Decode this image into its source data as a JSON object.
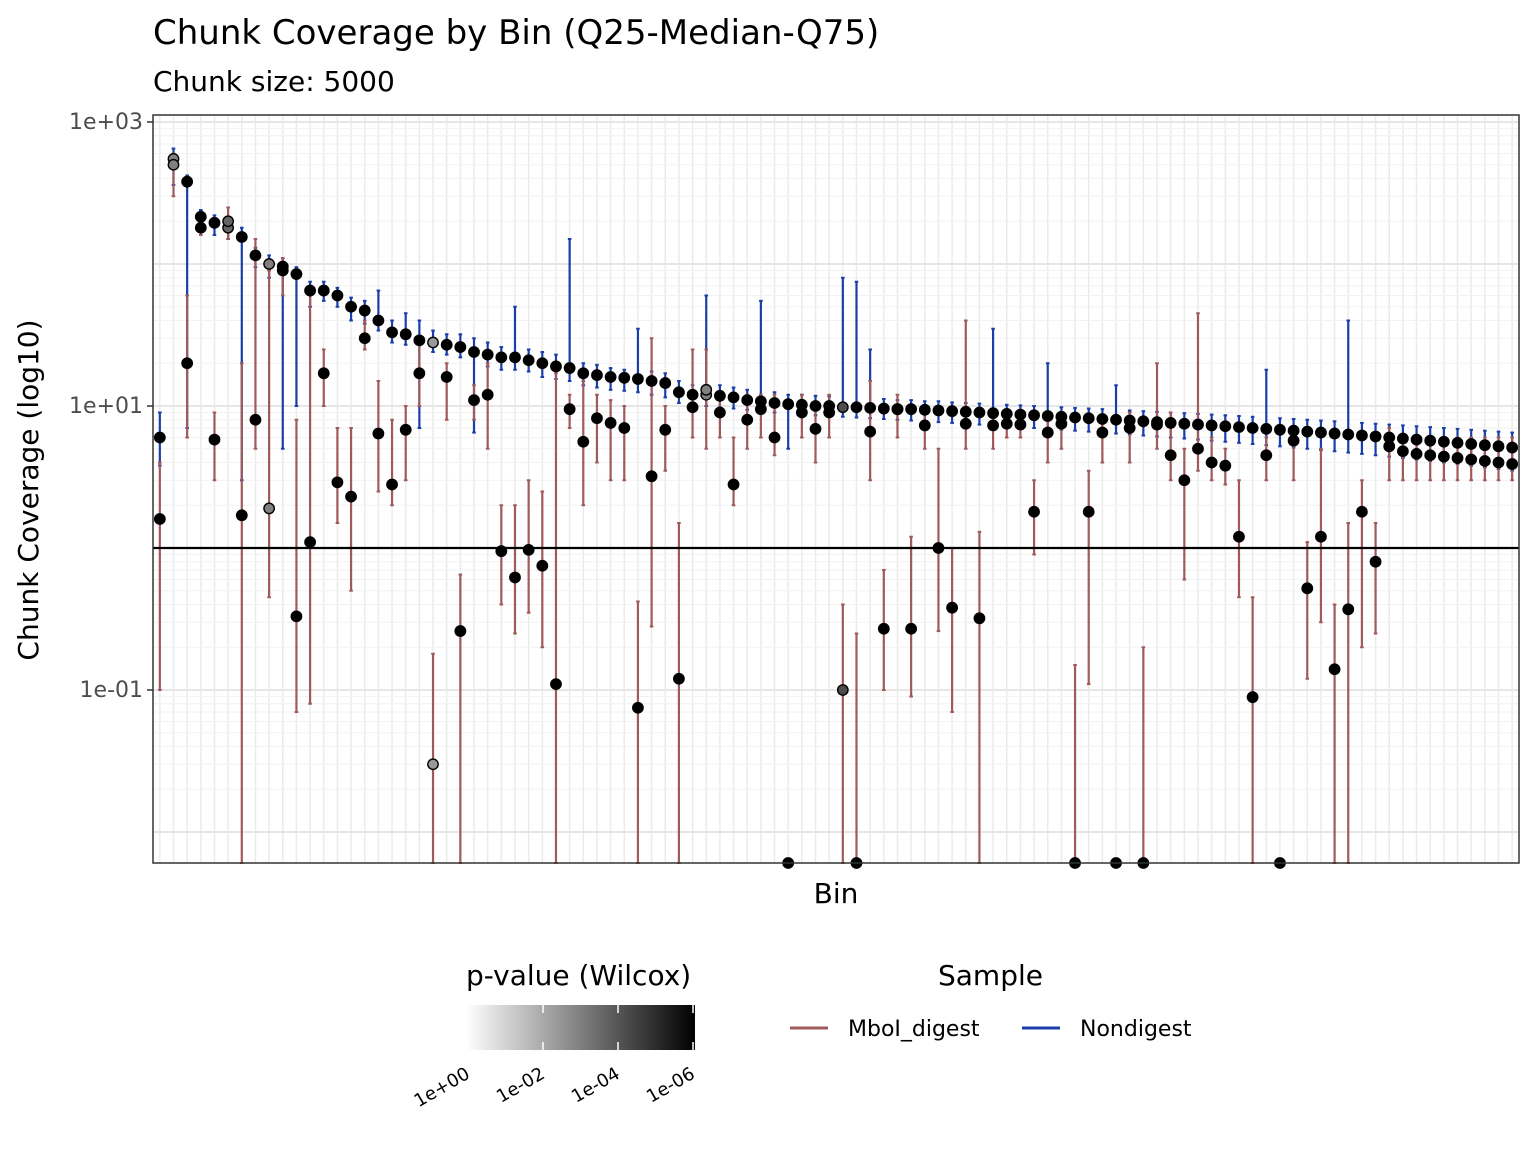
{
  "chart_data": {
    "type": "scatter",
    "title": "Chunk Coverage by Bin (Q25-Median-Q75)",
    "subtitle": "Chunk size: 5000",
    "xlabel": "Bin",
    "ylabel": "Chunk Coverage (log10)",
    "y_scale": "log10",
    "ylim": [
      0.003,
      1000
    ],
    "y_ticks": [
      "1e-01",
      "1e+01",
      "1e+03"
    ],
    "y_tick_values": [
      0.1,
      10,
      1000
    ],
    "x_tick_labels_shown": false,
    "grid": true,
    "legend_position": "bottom",
    "reference_line_y": 1,
    "colors": {
      "MboI_digest": "#a05a5a",
      "Nondigest": "#1a3ea8"
    },
    "legend": {
      "pvalue_title": "p-value (Wilcox)",
      "pvalue_ticks": [
        "1e+00",
        "1e-02",
        "1e-04",
        "1e-06"
      ],
      "sample_title": "Sample",
      "sample_entries": [
        "MboI_digest",
        "Nondigest"
      ]
    },
    "series": [
      {
        "name": "Nondigest",
        "median": [
          6.0,
          550.0,
          380.0,
          215.0,
          195.0,
          180.0,
          155.0,
          115.0,
          100.0,
          96.0,
          85.0,
          65.0,
          65.0,
          60.0,
          50.0,
          47.0,
          40.0,
          33.0,
          32.0,
          29.0,
          28.0,
          27.0,
          26.0,
          24.0,
          23.0,
          22.0,
          22.0,
          21.0,
          20.0,
          19.0,
          18.5,
          17.0,
          16.5,
          16.0,
          15.8,
          15.5,
          15.0,
          14.5,
          12.5,
          12.0,
          12.0,
          11.8,
          11.5,
          11.0,
          10.8,
          10.5,
          10.3,
          10.2,
          10.0,
          10.0,
          9.8,
          9.8,
          9.7,
          9.6,
          9.5,
          9.5,
          9.4,
          9.3,
          9.2,
          9.1,
          9.0,
          8.9,
          8.8,
          8.7,
          8.6,
          8.5,
          8.4,
          8.3,
          8.2,
          8.1,
          8.0,
          7.9,
          7.8,
          7.7,
          7.6,
          7.5,
          7.4,
          7.3,
          7.2,
          7.1,
          7.0,
          6.9,
          6.8,
          6.7,
          6.6,
          6.5,
          6.4,
          6.3,
          6.2,
          6.1,
          6.0,
          5.9,
          5.8,
          5.7,
          5.6,
          5.5,
          5.4,
          5.3,
          5.2,
          5.1
        ],
        "q25": [
          3.8,
          360.0,
          7.0,
          170.0,
          160.0,
          150.0,
          3.0,
          95.0,
          80.0,
          5.0,
          10.0,
          50.0,
          55.0,
          50.0,
          40.0,
          38.0,
          34.0,
          28.0,
          27.0,
          7.0,
          24.0,
          23.0,
          22.0,
          6.5,
          19.0,
          18.0,
          18.0,
          17.5,
          16.0,
          15.5,
          15.0,
          14.0,
          13.5,
          13.0,
          12.8,
          12.5,
          12.0,
          11.5,
          10.5,
          10.0,
          10.0,
          9.8,
          9.6,
          9.4,
          9.2,
          9.0,
          5.0,
          8.8,
          8.6,
          8.5,
          8.4,
          8.3,
          8.2,
          8.1,
          8.0,
          7.9,
          7.8,
          7.7,
          7.6,
          7.5,
          7.4,
          7.3,
          7.2,
          7.1,
          7.0,
          6.9,
          6.8,
          6.7,
          6.6,
          6.5,
          6.4,
          6.3,
          6.2,
          6.1,
          6.0,
          5.9,
          5.8,
          5.7,
          5.6,
          5.5,
          5.4,
          5.3,
          5.2,
          5.1,
          5.0,
          4.9,
          4.8,
          4.7,
          4.6,
          4.5,
          4.4,
          4.3,
          4.2,
          4.1,
          4.0,
          3.9,
          3.8,
          3.7,
          3.6,
          3.5
        ],
        "q75": [
          9.0,
          650.0,
          420.0,
          240.0,
          220.0,
          200.0,
          180.0,
          130.0,
          115.0,
          110.0,
          95.0,
          75.0,
          75.0,
          68.0,
          58.0,
          55.0,
          65.0,
          40.0,
          45.0,
          40.0,
          34.0,
          32.0,
          32.0,
          30.0,
          28.0,
          26.0,
          50.0,
          25.0,
          24.0,
          23.0,
          150.0,
          20.0,
          19.5,
          18.5,
          18.0,
          35.0,
          17.5,
          17.0,
          15.0,
          14.0,
          60.0,
          14.0,
          13.5,
          13.0,
          55.0,
          12.5,
          12.0,
          12.0,
          11.8,
          11.7,
          80.0,
          75.0,
          25.0,
          11.2,
          11.0,
          11.0,
          10.8,
          10.8,
          10.6,
          10.5,
          10.4,
          35.0,
          10.2,
          10.1,
          10.0,
          20.0,
          9.8,
          9.7,
          9.6,
          9.5,
          14.0,
          9.3,
          9.2,
          9.1,
          9.0,
          8.9,
          8.8,
          8.7,
          8.6,
          8.5,
          8.4,
          18.0,
          8.2,
          8.1,
          8.0,
          7.9,
          7.8,
          40.0,
          7.6,
          7.5,
          7.4,
          7.3,
          7.2,
          7.1,
          7.0,
          6.9,
          6.8,
          6.7,
          6.6,
          6.5
        ]
      },
      {
        "name": "MboI_digest",
        "median": [
          1.6,
          500.0,
          20.0,
          180.0,
          5.8,
          200.0,
          1.7,
          8.0,
          1.9,
          90.0,
          0.33,
          1.1,
          17.0,
          2.9,
          2.3,
          30.0,
          6.4,
          2.8,
          6.8,
          17.0,
          0.03,
          16.0,
          0.26,
          11.0,
          12.0,
          0.95,
          0.62,
          0.97,
          0.75,
          0.11,
          9.5,
          5.6,
          8.2,
          7.6,
          7.0,
          0.075,
          3.2,
          6.8,
          0.12,
          9.8,
          13.0,
          9.0,
          2.8,
          8.0,
          9.5,
          6.0,
          0.002,
          9.0,
          6.9,
          9.0,
          0.1,
          0.0023,
          6.6,
          0.27,
          9.5,
          0.27,
          7.3,
          1.0,
          0.38,
          7.5,
          0.32,
          7.3,
          7.5,
          7.4,
          1.8,
          6.5,
          7.5,
          0.0023,
          1.8,
          6.5,
          0.0023,
          7.0,
          0.002,
          7.4,
          4.5,
          3.0,
          5.0,
          4.0,
          3.8,
          1.2,
          0.089,
          4.5,
          0.0023,
          5.7,
          0.52,
          1.2,
          0.14,
          0.37,
          1.8,
          0.8,
          5.2,
          4.8,
          4.6,
          4.5,
          4.4,
          4.3,
          4.2,
          4.1,
          4.0,
          3.9
        ],
        "q25": [
          0.1,
          300.0,
          6.0,
          160.0,
          3.0,
          150.0,
          0.003,
          5.0,
          0.45,
          60.0,
          0.07,
          0.08,
          10.0,
          1.5,
          0.5,
          25.0,
          2.5,
          2.0,
          3.0,
          10.0,
          0.003,
          8.0,
          0.003,
          8.0,
          5.0,
          0.4,
          0.25,
          0.35,
          0.2,
          0.003,
          7.0,
          2.0,
          4.0,
          3.0,
          3.0,
          0.003,
          0.28,
          3.5,
          0.003,
          6.0,
          5.0,
          6.0,
          2.0,
          5.0,
          6.0,
          4.5,
          0.003,
          6.0,
          4.0,
          6.0,
          0.003,
          0.003,
          3.0,
          0.1,
          6.0,
          0.09,
          5.0,
          0.26,
          0.07,
          5.0,
          0.003,
          5.0,
          6.0,
          6.0,
          0.9,
          4.0,
          5.0,
          0.003,
          0.11,
          4.0,
          0.003,
          4.0,
          0.003,
          5.0,
          3.0,
          0.6,
          3.5,
          3.0,
          2.8,
          0.45,
          0.003,
          3.0,
          0.003,
          3.0,
          0.12,
          0.3,
          0.003,
          0.003,
          0.2,
          0.25,
          3.0,
          3.0,
          3.0,
          3.0,
          3.0,
          3.0,
          3.0,
          3.0,
          3.0,
          3.0
        ],
        "q75": [
          4.0,
          600.0,
          60.0,
          200.0,
          9.0,
          250.0,
          20.0,
          150.0,
          90.0,
          110.0,
          8.0,
          60.0,
          25.0,
          7.0,
          7.0,
          40.0,
          15.0,
          8.0,
          10.0,
          30.0,
          0.18,
          20.0,
          0.65,
          14.0,
          20.0,
          2.0,
          2.0,
          3.0,
          2.5,
          17.0,
          12.0,
          15.0,
          12.0,
          11.0,
          10.0,
          0.42,
          30.0,
          10.0,
          1.5,
          25.0,
          25.0,
          11.0,
          6.0,
          12.0,
          12.0,
          12.0,
          0.004,
          12.0,
          10.0,
          12.0,
          0.4,
          0.25,
          15.0,
          0.7,
          12.0,
          1.2,
          10.0,
          5.0,
          1.0,
          40.0,
          1.3,
          9.0,
          9.0,
          9.0,
          3.0,
          8.0,
          9.0,
          0.15,
          3.5,
          8.0,
          0.004,
          9.0,
          0.2,
          20.0,
          9.0,
          5.0,
          45.0,
          6.0,
          5.0,
          3.0,
          0.45,
          6.0,
          0.004,
          7.0,
          1.1,
          5.0,
          0.4,
          1.5,
          3.0,
          1.5,
          7.0,
          6.0,
          6.0,
          6.0,
          6.0,
          6.0,
          6.0,
          6.0,
          6.0,
          6.0
        ]
      }
    ],
    "pvalue_median_fill": [
      0.0,
      0.5,
      0.0,
      0.0,
      0.0,
      0.4,
      0.0,
      0.0,
      0.5,
      0.0,
      0.0,
      0.0,
      0.0,
      0.0,
      0.0,
      0.0,
      0.0,
      0.0,
      0.0,
      0.0,
      0.6,
      0.0,
      0.0,
      0.0,
      0.0,
      0.0,
      0.0,
      0.0,
      0.0,
      0.0,
      0.0,
      0.0,
      0.0,
      0.0,
      0.0,
      0.0,
      0.0,
      0.0,
      0.0,
      0.0,
      0.5,
      0.0,
      0.0,
      0.0,
      0.0,
      0.0,
      0.0,
      0.0,
      0.0,
      0.0,
      0.3,
      0.0,
      0.0,
      0.0,
      0.0,
      0.0,
      0.0,
      0.0,
      0.0,
      0.0,
      0.0,
      0.0,
      0.0,
      0.0,
      0.0,
      0.0,
      0.0,
      0.0,
      0.0,
      0.0,
      0.0,
      0.0,
      0.0,
      0.0,
      0.0,
      0.0,
      0.0,
      0.0,
      0.0,
      0.0,
      0.0,
      0.0,
      0.0,
      0.0,
      0.0,
      0.0,
      0.0,
      0.0,
      0.0,
      0.0,
      0.0,
      0.0,
      0.0,
      0.0,
      0.0,
      0.0,
      0.0,
      0.0,
      0.0,
      0.0
    ]
  }
}
